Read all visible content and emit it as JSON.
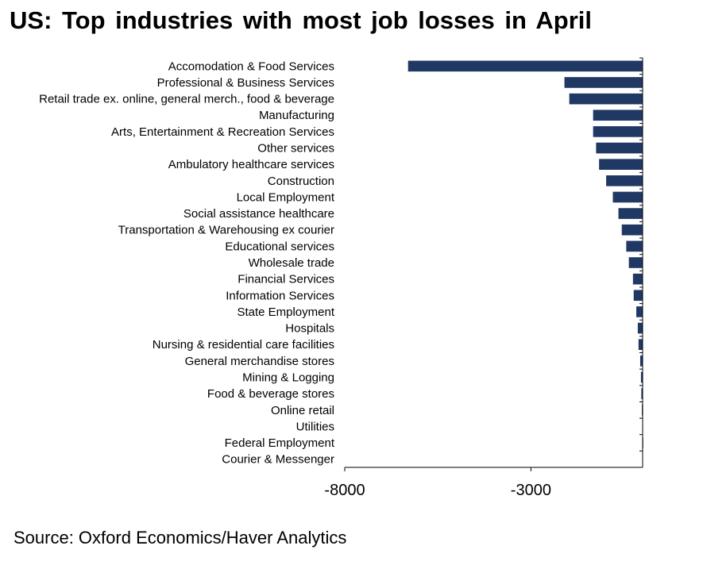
{
  "title": "US: Top industries  with most job losses  in April",
  "source": "Source: Oxford Economics/Haver Analytics",
  "colors": {
    "bar": "#1F3864",
    "axis": "#000000"
  },
  "chart_data": {
    "type": "bar",
    "orientation": "horizontal",
    "title": "US: Top industries  with most job losses  in April",
    "xlabel": "",
    "ylabel": "",
    "xlim": [
      -8000,
      0
    ],
    "xticks": [
      -8000,
      -3000
    ],
    "xtick_labels": [
      "-8000",
      "-3000"
    ],
    "grid": false,
    "categories": [
      "Accomodation & Food Services",
      "Professional & Business Services",
      "Retail trade ex. online, general merch., food & beverage",
      "Manufacturing",
      "Arts, Entertainment & Recreation Services",
      "Other services",
      "Ambulatory healthcare services",
      "Construction",
      "Local Employment",
      "Social assistance healthcare",
      "Transportation & Warehousing ex courier",
      "Educational services",
      "Wholesale trade",
      "Financial Services",
      "Information Services",
      "State Employment",
      "Hospitals",
      "Nursing & residential care facilities",
      "General merchandise stores",
      "Mining & Logging",
      "Food & beverage stores",
      "Online retail",
      "Utilities",
      "Federal Employment",
      "Courier & Messenger"
    ],
    "values": [
      -6300,
      -2100,
      -1970,
      -1330,
      -1330,
      -1250,
      -1170,
      -980,
      -800,
      -650,
      -560,
      -440,
      -370,
      -260,
      -240,
      -170,
      -130,
      -110,
      -65,
      -45,
      -35,
      -20,
      -10,
      -5,
      0
    ]
  }
}
